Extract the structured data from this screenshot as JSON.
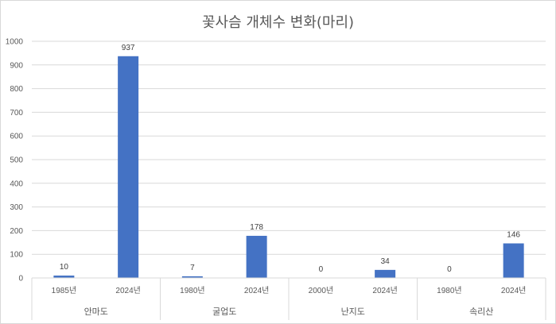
{
  "chart_data": {
    "type": "bar",
    "title": "꽃사슴 개체수 변화(마리)",
    "xlabel": "",
    "ylabel": "",
    "ylim": [
      0,
      1000
    ],
    "yticks": [
      0,
      100,
      200,
      300,
      400,
      500,
      600,
      700,
      800,
      900,
      1000
    ],
    "grid": true,
    "legend": "none",
    "groups": [
      {
        "name": "안마도",
        "categories": [
          "1985년",
          "2024년"
        ],
        "values": [
          10,
          937
        ]
      },
      {
        "name": "굴업도",
        "categories": [
          "1980년",
          "2024년"
        ],
        "values": [
          7,
          178
        ]
      },
      {
        "name": "난지도",
        "categories": [
          "2000년",
          "2024년"
        ],
        "values": [
          0,
          34
        ]
      },
      {
        "name": "속리산",
        "categories": [
          "1980년",
          "2024년"
        ],
        "values": [
          0,
          146
        ]
      }
    ],
    "colors": {
      "bar": "#4472c4",
      "grid": "#d9d9d9",
      "text": "#595959",
      "label": "#404040"
    }
  }
}
